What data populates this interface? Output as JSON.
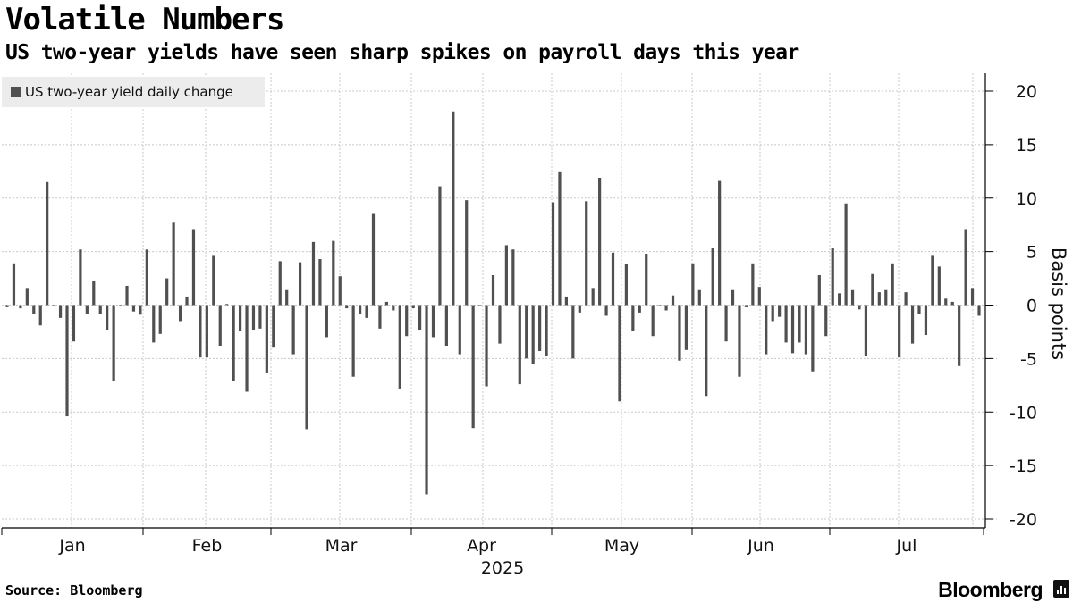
{
  "header": {
    "title": "Volatile Numbers",
    "subtitle": "US two-year yields have seen sharp spikes on payroll days this year"
  },
  "footer": {
    "source": "Source: Bloomberg",
    "brand": "Bloomberg"
  },
  "colors": {
    "bar": "#505050",
    "grid": "#c8c8c8",
    "legend_bg": "#ececec"
  },
  "chart_data": {
    "type": "bar",
    "title": "Volatile Numbers",
    "subtitle": "US two-year yields have seen sharp spikes on payroll days this year",
    "xlabel": "2025",
    "ylabel": "Basis points",
    "ylim": [
      -20,
      20
    ],
    "yticks": [
      20,
      15,
      10,
      5,
      0,
      -5,
      -10,
      -15,
      -20
    ],
    "grid": true,
    "legend_position": "top-left",
    "month_labels": [
      "Jan",
      "Feb",
      "Mar",
      "Apr",
      "May",
      "Jun",
      "Jul"
    ],
    "year_label": "2025",
    "series": [
      {
        "name": "US two-year yield daily change",
        "values": [
          -0.2,
          3.9,
          -0.3,
          1.6,
          -0.8,
          -1.9,
          11.5,
          -0.1,
          -1.2,
          -10.4,
          -3.4,
          5.2,
          -0.8,
          2.3,
          -0.8,
          -2.3,
          -7.1,
          -0.1,
          1.8,
          -0.6,
          -0.9,
          5.2,
          -3.5,
          -2.7,
          2.5,
          7.7,
          -1.5,
          0.8,
          7.1,
          -4.9,
          -4.9,
          4.6,
          -3.8,
          0.1,
          -7.1,
          -2.4,
          -8.1,
          -2.3,
          -2.2,
          -6.3,
          -3.9,
          4.1,
          1.4,
          -4.6,
          4.0,
          -11.6,
          5.9,
          4.3,
          -3.0,
          6.0,
          2.7,
          -0.3,
          -6.7,
          -0.8,
          -1.2,
          8.6,
          -2.2,
          0.3,
          -0.5,
          -7.8,
          -2.9,
          -0.3,
          -2.3,
          -17.7,
          -3.0,
          11.1,
          -3.8,
          18.1,
          -4.6,
          9.8,
          -11.5,
          -0.1,
          -7.6,
          2.8,
          -3.6,
          5.6,
          5.2,
          -7.4,
          -5.0,
          -5.5,
          -4.3,
          -4.8,
          9.6,
          12.5,
          0.8,
          -5.0,
          -0.7,
          9.7,
          1.6,
          11.9,
          -1.0,
          4.9,
          -9.0,
          3.8,
          -2.4,
          -0.7,
          4.8,
          -2.9,
          -0.1,
          -0.5,
          0.9,
          -5.2,
          -4.2,
          3.9,
          1.4,
          -8.5,
          5.3,
          11.6,
          -3.4,
          1.4,
          -6.7,
          -0.2,
          3.9,
          1.7,
          -4.6,
          -1.5,
          -1.1,
          -3.5,
          -4.5,
          -3.5,
          -4.6,
          -6.2,
          2.8,
          -2.9,
          5.3,
          1.1,
          9.5,
          1.4,
          -0.4,
          -4.8,
          2.9,
          1.2,
          1.4,
          3.9,
          -4.9,
          1.2,
          -3.6,
          -0.8,
          -2.8,
          4.6,
          3.6,
          0.6,
          0.3,
          -5.7,
          7.1,
          1.6,
          -1.0
        ]
      }
    ]
  }
}
